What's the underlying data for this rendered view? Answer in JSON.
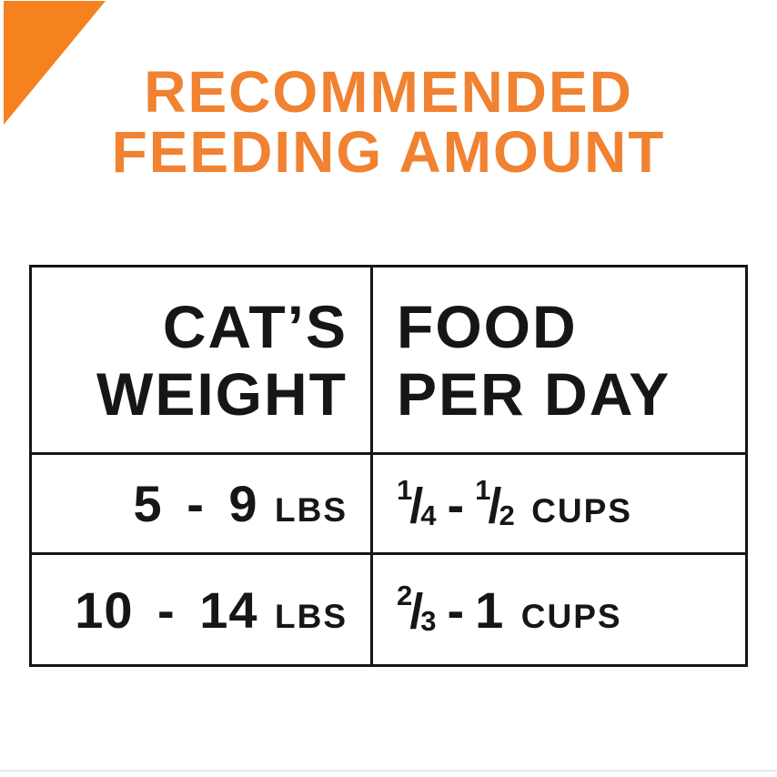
{
  "title": {
    "line1": "RECOMMENDED",
    "line2": "FEEDING AMOUNT"
  },
  "strings": {
    "slash": "/"
  },
  "table": {
    "header": {
      "col1_line1": "CAT’S",
      "col1_line2": "WEIGHT",
      "col2_line1": "FOOD",
      "col2_line2": "PER DAY"
    },
    "rows": [
      {
        "weight": "5 - 9",
        "weight_unit": "LBS",
        "food": {
          "frac1": {
            "num": "1",
            "den": "4"
          },
          "dash": "-",
          "frac2": {
            "num": "1",
            "den": "2"
          },
          "unit": "CUPS"
        }
      },
      {
        "weight": "10 - 14",
        "weight_unit": "LBS",
        "food": {
          "frac1": {
            "num": "2",
            "den": "3"
          },
          "dash": "-",
          "whole": "1",
          "unit": "CUPS"
        }
      }
    ]
  },
  "colors": {
    "accent_orange_triangle": "#F5821F",
    "title_orange": "#F08231",
    "text_black": "#161616",
    "table_border": "#161616",
    "bottom_line_gray": "#E8E8E8",
    "background": "#FFFFFF"
  },
  "chart_data": {
    "type": "table",
    "title": "RECOMMENDED FEEDING AMOUNT",
    "columns": [
      "CAT'S WEIGHT",
      "FOOD PER DAY"
    ],
    "rows": [
      [
        "5 - 9 lbs",
        "1/4 - 1/2 cups"
      ],
      [
        "10 - 14 lbs",
        "2/3 - 1 cups"
      ]
    ],
    "layout_hints": {
      "header_col1_align": "right",
      "header_col2_align": "left",
      "grid": "on",
      "border_color": "#161616"
    }
  }
}
